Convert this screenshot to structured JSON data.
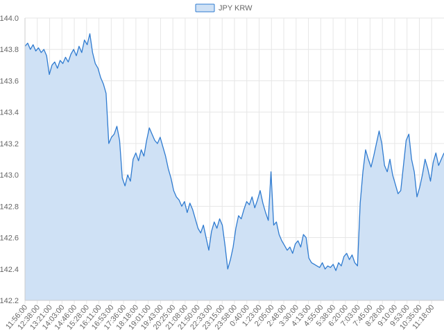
{
  "chart_data": {
    "type": "area",
    "legend": {
      "label": "JPY KRW",
      "position": "top-center"
    },
    "colors": {
      "line": "#2f7bd0",
      "fill": "#cfe1f5",
      "grid": "#e6e6e6"
    },
    "grid": true,
    "ylim": [
      142.2,
      144.0
    ],
    "y_ticks": [
      "144.0",
      "143.8",
      "143.6",
      "143.4",
      "143.2",
      "143.0",
      "142.8",
      "142.6",
      "142.4",
      "142.2"
    ],
    "x_tick_labels": [
      "11:56:00",
      "12:38:00",
      "13:21:00",
      "14:03:00",
      "14:46:00",
      "15:28:00",
      "16:11:00",
      "16:53:00",
      "17:36:00",
      "18:18:00",
      "19:01:00",
      "19:43:00",
      "20:25:00",
      "21:08:00",
      "21:50:00",
      "22:33:00",
      "23:15:00",
      "23:58:00",
      "0:40:00",
      "1:23:00",
      "2:05:00",
      "2:48:00",
      "3:30:00",
      "4:13:00",
      "4:55:00",
      "5:38:00",
      "6:20:00",
      "7:03:00",
      "7:45:00",
      "8:28:00",
      "9:10:00",
      "9:53:00",
      "10:35:00",
      "11:18:00"
    ],
    "series": [
      {
        "name": "JPY KRW",
        "values": [
          143.82,
          143.84,
          143.8,
          143.83,
          143.79,
          143.81,
          143.78,
          143.8,
          143.76,
          143.64,
          143.7,
          143.72,
          143.68,
          143.73,
          143.71,
          143.75,
          143.72,
          143.77,
          143.8,
          143.76,
          143.82,
          143.78,
          143.86,
          143.83,
          143.9,
          143.78,
          143.71,
          143.68,
          143.62,
          143.58,
          143.52,
          143.2,
          143.24,
          143.26,
          143.31,
          143.22,
          142.98,
          142.93,
          143.0,
          142.96,
          143.1,
          143.14,
          143.09,
          143.16,
          143.12,
          143.22,
          143.3,
          143.26,
          143.22,
          143.2,
          143.24,
          143.18,
          143.12,
          143.04,
          142.98,
          142.9,
          142.86,
          142.84,
          142.8,
          142.83,
          142.76,
          142.82,
          142.78,
          142.72,
          142.66,
          142.63,
          142.68,
          142.6,
          142.52,
          142.64,
          142.7,
          142.66,
          142.72,
          142.68,
          142.55,
          142.4,
          142.46,
          142.54,
          142.66,
          142.74,
          142.72,
          142.78,
          142.83,
          142.81,
          142.86,
          142.79,
          142.84,
          142.9,
          142.82,
          142.76,
          142.71,
          143.02,
          142.68,
          142.7,
          142.62,
          142.58,
          142.55,
          142.52,
          142.54,
          142.5,
          142.56,
          142.58,
          142.54,
          142.62,
          142.6,
          142.47,
          142.44,
          142.43,
          142.42,
          142.41,
          142.44,
          142.4,
          142.42,
          142.41,
          142.43,
          142.39,
          142.44,
          142.42,
          142.48,
          142.5,
          142.46,
          142.49,
          142.44,
          142.42,
          142.82,
          143.02,
          143.16,
          143.1,
          143.05,
          143.12,
          143.2,
          143.28,
          143.2,
          143.06,
          143.02,
          143.1,
          143.0,
          142.94,
          142.88,
          142.9,
          143.06,
          143.22,
          143.26,
          143.1,
          143.02,
          142.86,
          142.92,
          143.0,
          143.1,
          143.04,
          142.96,
          143.08,
          143.14,
          143.06,
          143.1,
          143.14
        ]
      }
    ]
  }
}
